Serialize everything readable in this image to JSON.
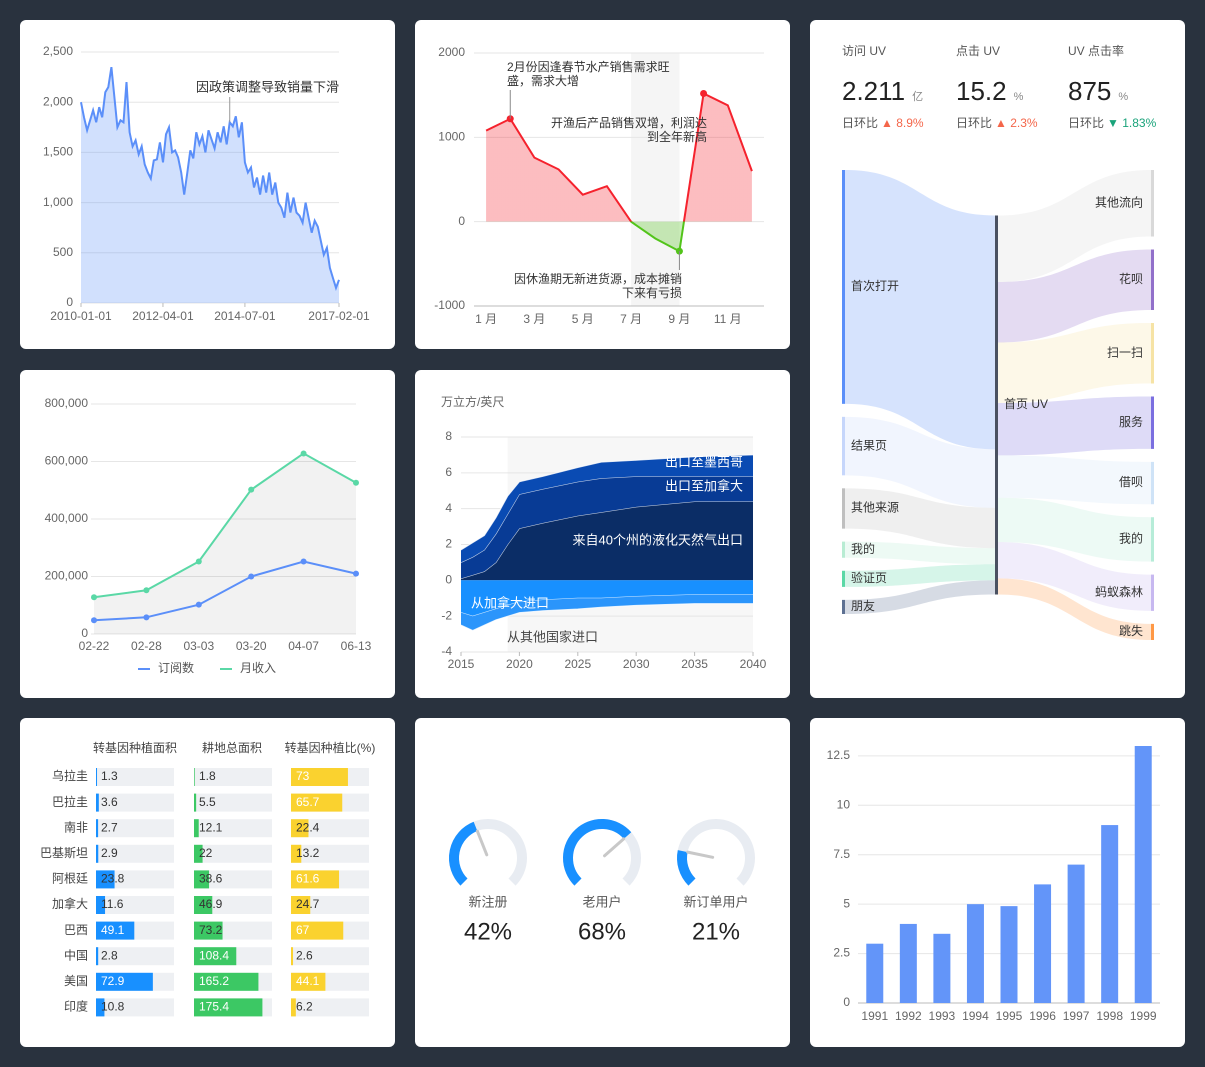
{
  "chart_data": [
    {
      "type": "area",
      "x": [
        "2010-01-01",
        "2010-02-01",
        "2010-03-01",
        "2010-04-01",
        "2010-05-01",
        "2010-06-01",
        "2010-07-01",
        "2010-08-01",
        "2010-09-01",
        "2010-10-01",
        "2010-11-01",
        "2010-12-01",
        "2011-01-01",
        "2011-02-01",
        "2011-03-01",
        "2011-04-01",
        "2011-05-01",
        "2011-06-01",
        "2011-07-01",
        "2011-08-01",
        "2011-09-01",
        "2011-10-01",
        "2011-11-01",
        "2011-12-01",
        "2012-01-01",
        "2012-02-01",
        "2012-03-01",
        "2012-04-01",
        "2012-05-01",
        "2012-06-01",
        "2012-07-01",
        "2012-08-01",
        "2012-09-01",
        "2012-10-01",
        "2012-11-01",
        "2012-12-01",
        "2013-01-01",
        "2013-02-01",
        "2013-03-01",
        "2013-04-01",
        "2013-05-01",
        "2013-06-01",
        "2013-07-01",
        "2013-08-01",
        "2013-09-01",
        "2013-10-01",
        "2013-11-01",
        "2013-12-01",
        "2014-01-01",
        "2014-02-01",
        "2014-03-01",
        "2014-04-01",
        "2014-05-01",
        "2014-06-01",
        "2014-07-01",
        "2014-08-01",
        "2014-09-01",
        "2014-10-01",
        "2014-11-01",
        "2014-12-01",
        "2015-01-01",
        "2015-02-01",
        "2015-03-01",
        "2015-04-01",
        "2015-05-01",
        "2015-06-01",
        "2015-07-01",
        "2015-08-01",
        "2015-09-01",
        "2015-10-01",
        "2015-11-01",
        "2015-12-01",
        "2016-01-01",
        "2016-02-01",
        "2016-03-01",
        "2016-04-01",
        "2016-05-01",
        "2016-06-01",
        "2016-07-01",
        "2016-08-01",
        "2016-09-01",
        "2016-10-01",
        "2016-11-01",
        "2016-12-01",
        "2017-01-01",
        "2017-02-01"
      ],
      "values": [
        2000,
        1850,
        1720,
        1820,
        1920,
        1800,
        1950,
        1850,
        2100,
        2150,
        2350,
        2050,
        1750,
        1820,
        1800,
        2200,
        1700,
        1560,
        1620,
        1480,
        1560,
        1380,
        1300,
        1240,
        1420,
        1430,
        1600,
        1400,
        1680,
        1750,
        1500,
        1520,
        1450,
        1300,
        1080,
        1290,
        1520,
        1440,
        1700,
        1580,
        1660,
        1500,
        1720,
        1630,
        1540,
        1700,
        1600,
        1760,
        1580,
        1800,
        1760,
        1860,
        1650,
        1800,
        1400,
        1300,
        1350,
        1150,
        1250,
        1080,
        1270,
        1100,
        1300,
        1080,
        1200,
        1000,
        950,
        850,
        1100,
        900,
        1050,
        900,
        870,
        800,
        1000,
        850,
        700,
        820,
        760,
        620,
        480,
        550,
        350,
        250,
        150,
        230
      ],
      "color": "#5b8ff9",
      "xlim": [
        "2010-01-01",
        "2017-02-01"
      ],
      "xticks": [
        "2010-01-01",
        "2012-04-01",
        "2014-07-01",
        "2017-02-01"
      ],
      "ylim": [
        0,
        2500
      ],
      "yticks": [
        0,
        500,
        {
          "value": 1000,
          "label": "1,000"
        },
        {
          "value": 1500,
          "label": "1,500"
        },
        {
          "value": 2000,
          "label": "2,000"
        },
        {
          "value": 2500,
          "label": "2,500"
        }
      ],
      "grid": true,
      "annotation": {
        "text": "因政策调整导致销量下滑",
        "x": "2014-02-01"
      }
    },
    {
      "type": "line-posneg",
      "categories": [
        "1 月",
        null,
        "3 月",
        null,
        "5 月",
        null,
        "7 月",
        null,
        "9 月",
        null,
        "11 月",
        null
      ],
      "values": [
        1080,
        1220,
        760,
        620,
        320,
        420,
        0,
        -200,
        -350,
        1520,
        1380,
        600
      ],
      "color": "#f5222d",
      "negative_color": "#52c41a",
      "ylim": [
        -1000,
        2000
      ],
      "yticks": [
        -1000,
        0,
        1000,
        2000
      ],
      "grid": true,
      "highlight": [
        1,
        8,
        9
      ],
      "shaded": [
        6,
        8
      ],
      "annotations": [
        {
          "lines": [
            "2月份因逢春节水产销售需求旺",
            "盛，需求大增"
          ],
          "point": 1
        },
        {
          "lines": [
            "开渔后产品销售双增，利润达",
            "到全年新高"
          ],
          "point": 9
        },
        {
          "lines": [
            "因休渔期无新进货源，成本摊销",
            "下来有亏损"
          ],
          "point": 8
        }
      ]
    },
    {
      "type": "sankey",
      "kpis": [
        {
          "label": "访问 UV",
          "value": 2.211,
          "unit": "亿",
          "compare": "日环比",
          "change": "▲ 8.9%",
          "change_color": "#f4664a"
        },
        {
          "label": "点击 UV",
          "value": 15.2,
          "unit": "%",
          "compare": "日环比",
          "change": "▲ 2.3%",
          "change_color": "#f4664a"
        },
        {
          "label": "UV 点击率",
          "value": 875,
          "unit": "%",
          "compare": "日环比",
          "change": "▼ 1.83%",
          "change_color": "#1aa37a"
        }
      ],
      "nodes": [
        {
          "name": "首次打开",
          "color": "#5b8ff9"
        },
        {
          "name": "结果页",
          "color": "#c6d6fb"
        },
        {
          "name": "其他来源",
          "color": "#bfbfbf"
        },
        {
          "name": "我的",
          "color": "#b8ecd3"
        },
        {
          "name": "验证页",
          "color": "#5ad8a6"
        },
        {
          "name": "朋友",
          "color": "#5d7092"
        },
        {
          "name": "首页 UV",
          "color": "#4a5161"
        },
        {
          "name": "其他流向",
          "color": "#d9d9d9"
        },
        {
          "name": "花呗",
          "color": "#9270ca"
        },
        {
          "name": "扫一扫",
          "color": "#f6e3a5"
        },
        {
          "name": "服务",
          "color": "#7b6fe0"
        },
        {
          "name": "借呗",
          "color": "#cfe3f7"
        },
        {
          "name": "我的",
          "color": "#b6ecd8"
        },
        {
          "name": "蚂蚁森林",
          "color": "#c7b8f0"
        },
        {
          "name": "跳失",
          "color": "#ff9845"
        }
      ],
      "links": [
        {
          "source": 0,
          "target": 6,
          "value": 116
        },
        {
          "source": 1,
          "target": 6,
          "value": 29
        },
        {
          "source": 2,
          "target": 6,
          "value": 20
        },
        {
          "source": 3,
          "target": 6,
          "value": 8
        },
        {
          "source": 4,
          "target": 6,
          "value": 8
        },
        {
          "source": 5,
          "target": 6,
          "value": 7
        },
        {
          "source": 6,
          "target": 7,
          "value": 33
        },
        {
          "source": 6,
          "target": 8,
          "value": 30
        },
        {
          "source": 6,
          "target": 9,
          "value": 30
        },
        {
          "source": 6,
          "target": 10,
          "value": 26
        },
        {
          "source": 6,
          "target": 11,
          "value": 21
        },
        {
          "source": 6,
          "target": 12,
          "value": 22
        },
        {
          "source": 6,
          "target": 13,
          "value": 18
        },
        {
          "source": 6,
          "target": 14,
          "value": 8
        }
      ]
    },
    {
      "type": "line",
      "categories": [
        "02-22",
        "02-28",
        "03-03",
        "03-20",
        "04-07",
        "06-13"
      ],
      "series": [
        {
          "name": "订阅数",
          "color": "#5b8ff9",
          "values": [
            48000,
            58000,
            102000,
            200000,
            252000,
            210000
          ]
        },
        {
          "name": "月收入",
          "color": "#5ad8a6",
          "values": [
            128000,
            152000,
            252000,
            502000,
            628000,
            526000
          ],
          "area": true
        }
      ],
      "ylim": [
        0,
        800000
      ],
      "yticks": [
        0,
        {
          "value": 200000,
          "label": "200,000"
        },
        {
          "value": 400000,
          "label": "400,000"
        },
        {
          "value": 600000,
          "label": "600,000"
        },
        {
          "value": 800000,
          "label": "800,000"
        }
      ],
      "grid": true,
      "legend": "bottom"
    },
    {
      "type": "stacked-area",
      "y_axis_label": "万立方/英尺",
      "x": [
        2015,
        2016,
        2017,
        2018,
        2019,
        2020,
        2022,
        2025,
        2027,
        2030,
        2035,
        2040
      ],
      "xlim": [
        2015,
        2040
      ],
      "xticks": [
        2015,
        2020,
        2025,
        2030,
        2035,
        2040
      ],
      "ylim": [
        -4,
        8
      ],
      "yticks": [
        -4,
        -2,
        0,
        2,
        4,
        6,
        8
      ],
      "grid": true,
      "shaded_from": 2019,
      "series": [
        {
          "name": "来自40个州的液化天然气出口",
          "color": "#0b2d66",
          "values": [
            0.1,
            0.3,
            0.5,
            1.0,
            2.0,
            2.9,
            3.2,
            3.6,
            3.8,
            4.1,
            4.4,
            4.4
          ]
        },
        {
          "name": "出口至加拿大",
          "color": "#083b95",
          "values": [
            0.9,
            1.0,
            1.2,
            1.6,
            1.7,
            1.9,
            1.9,
            1.9,
            1.9,
            1.7,
            1.4,
            1.4
          ]
        },
        {
          "name": "出口至墨西哥",
          "color": "#0a4bb3",
          "values": [
            0.7,
            0.8,
            0.8,
            0.9,
            1.0,
            0.7,
            0.7,
            0.8,
            0.9,
            0.9,
            1.1,
            1.2
          ]
        },
        {
          "name": "从加拿大进口",
          "color": "#1890ff",
          "values": [
            -1.8,
            -2.0,
            -1.8,
            -1.6,
            -1.4,
            -1.2,
            -1.1,
            -1.0,
            -1.0,
            -0.9,
            -0.8,
            -0.8
          ]
        },
        {
          "name": "从其他国家进口",
          "color": "#2b95fb",
          "values": [
            -0.7,
            -0.8,
            -0.7,
            -0.6,
            -0.6,
            -0.6,
            -0.6,
            -0.6,
            -0.5,
            -0.5,
            -0.5,
            -0.5
          ]
        }
      ]
    },
    {
      "type": "table-bars",
      "columns": [
        {
          "name": "转基因种植面积",
          "color": "#1890ff",
          "max": 100
        },
        {
          "name": "耕地总面积",
          "color": "#3cc864",
          "max": 200
        },
        {
          "name": "转基因种植比(%)",
          "color": "#fad22f",
          "max": 100
        }
      ],
      "rows": [
        {
          "name": "乌拉圭",
          "values": [
            1.3,
            1.8,
            73
          ]
        },
        {
          "name": "巴拉圭",
          "values": [
            3.6,
            5.5,
            65.7
          ]
        },
        {
          "name": "南非",
          "values": [
            2.7,
            12.1,
            22.4
          ]
        },
        {
          "name": "巴基斯坦",
          "values": [
            2.9,
            22,
            13.2
          ]
        },
        {
          "name": "阿根廷",
          "values": [
            23.8,
            38.6,
            61.6
          ]
        },
        {
          "name": "加拿大",
          "values": [
            11.6,
            46.9,
            24.7
          ]
        },
        {
          "name": "巴西",
          "values": [
            49.1,
            73.2,
            67
          ]
        },
        {
          "name": "中国",
          "values": [
            2.8,
            108.4,
            2.6
          ]
        },
        {
          "name": "美国",
          "values": [
            72.9,
            165.2,
            44.1
          ]
        },
        {
          "name": "印度",
          "values": [
            10.8,
            175.4,
            6.2
          ]
        }
      ]
    },
    {
      "type": "gauge",
      "categories": [
        "新注册",
        "老用户",
        "新订单用户"
      ],
      "values": [
        42,
        68,
        21
      ],
      "value_labels": [
        "42%",
        "68%",
        "21%"
      ],
      "range": [
        0,
        100
      ],
      "color": "#1890ff"
    },
    {
      "type": "bar",
      "categories": [
        "1991",
        "1992",
        "1993",
        "1994",
        "1995",
        "1996",
        "1997",
        "1998",
        "1999"
      ],
      "values": [
        3,
        4,
        3.5,
        5,
        4.9,
        6,
        7,
        9,
        13
      ],
      "color": "#6395f9",
      "ylim": [
        0,
        13
      ],
      "yticks": [
        0,
        2.5,
        5,
        7.5,
        10,
        12.5
      ],
      "grid": true
    }
  ]
}
